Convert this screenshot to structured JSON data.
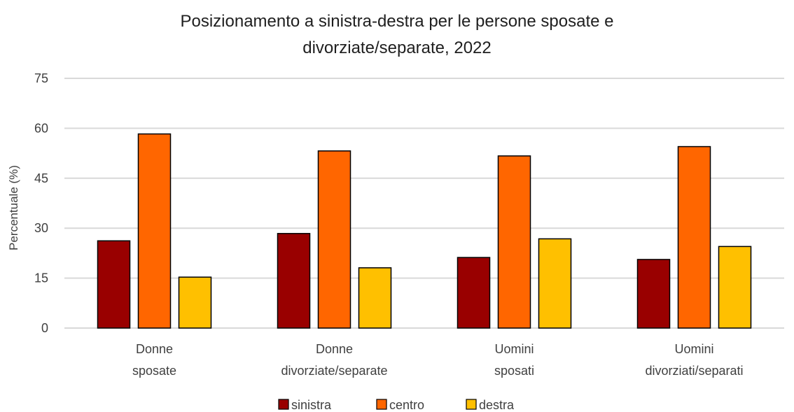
{
  "chart_data": {
    "type": "bar",
    "title_lines": [
      "Posizionamento a sinistra-destra per le persone sposate e",
      "divorziate/separate, 2022"
    ],
    "ylabel": "Percentuale (%)",
    "xlabel": "",
    "ylim": [
      0,
      75
    ],
    "yticks": [
      "0",
      "15",
      "30",
      "45",
      "60",
      "75"
    ],
    "grid": true,
    "legend_position": "bottom",
    "categories": [
      [
        "Donne",
        "sposate"
      ],
      [
        "Donne",
        "divorziate/separate"
      ],
      [
        "Uomini",
        "sposati"
      ],
      [
        "Uomini",
        "divorziati/separati"
      ]
    ],
    "series": [
      {
        "name": "sinistra",
        "color": "#990000",
        "values": [
          26.2,
          28.4,
          21.2,
          20.6
        ]
      },
      {
        "name": "centro",
        "color": "#FF6600",
        "values": [
          58.3,
          53.2,
          51.7,
          54.5
        ]
      },
      {
        "name": "destra",
        "color": "#FFC000",
        "values": [
          15.3,
          18.1,
          26.8,
          24.5
        ]
      }
    ]
  }
}
